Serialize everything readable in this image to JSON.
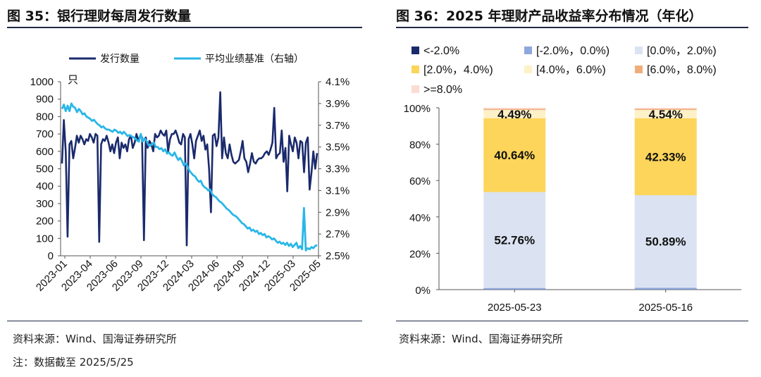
{
  "left_panel": {
    "figure_title": "图 35：银行理财每周发行数量",
    "source": "资料来源：Wind、国海证券研究所",
    "note": "注：数据截至 2025/5/25"
  },
  "right_panel": {
    "figure_title": "图 36：2025 年理财产品收益率分布情况（年化）",
    "source": "资料来源：Wind、国海证券研究所"
  },
  "chart_data": [
    {
      "type": "line",
      "legend_position": "top",
      "yunit": "只",
      "ylim": [
        0,
        1000
      ],
      "yticks": [
        "0",
        "100",
        "200",
        "300",
        "400",
        "500",
        "600",
        "700",
        "800",
        "900",
        "1000"
      ],
      "y2lim": [
        2.5,
        4.1
      ],
      "y2ticks": [
        "2.5%",
        "2.7%",
        "2.9%",
        "3.1%",
        "3.3%",
        "3.5%",
        "3.7%",
        "3.9%",
        "4.1%"
      ],
      "xticks": [
        "2023-01",
        "2023-04",
        "2023-06",
        "2023-09",
        "2023-12",
        "2024-03",
        "2024-06",
        "2024-09",
        "2024-12",
        "2025-03",
        "2025-05"
      ],
      "series": [
        {
          "name": "发行数量",
          "axis": "left",
          "color": "#1a2a6c",
          "values": [
            530,
            780,
            600,
            110,
            640,
            660,
            560,
            620,
            690,
            650,
            690,
            670,
            640,
            670,
            660,
            700,
            680,
            650,
            700,
            690,
            80,
            640,
            670,
            660,
            690,
            650,
            600,
            640,
            590,
            650,
            680,
            560,
            650,
            620,
            640,
            600,
            670,
            690,
            620,
            650,
            700,
            660,
            690,
            680,
            90,
            680,
            620,
            660,
            640,
            600,
            700,
            680,
            690,
            720,
            700,
            690,
            720,
            600,
            670,
            700,
            700,
            720,
            690,
            650,
            640,
            700,
            680,
            60,
            670,
            700,
            640,
            560,
            660,
            690,
            720,
            660,
            690,
            610,
            640,
            500,
            250,
            690,
            700,
            630,
            680,
            940,
            560,
            680,
            590,
            560,
            640,
            580,
            540,
            530,
            540,
            550,
            600,
            660,
            560,
            540,
            480,
            530,
            590,
            540,
            530,
            550,
            560,
            560,
            570,
            590,
            600,
            580,
            610,
            650,
            850,
            560,
            580,
            590,
            720,
            540,
            620,
            370,
            690,
            640,
            600,
            680,
            650,
            560,
            660,
            650,
            480,
            650,
            680,
            380,
            480,
            600,
            500,
            590
          ],
          "x_start": "2023-01-01",
          "x_end": "2025-05-25"
        },
        {
          "name": "平均业绩基准（右轴）",
          "axis": "right",
          "color": "#29b6e8",
          "values": [
            3.85,
            3.89,
            3.83,
            3.88,
            3.83,
            3.9,
            3.87,
            3.86,
            3.82,
            3.85,
            3.83,
            3.8,
            3.81,
            3.78,
            3.77,
            3.76,
            3.74,
            3.75,
            3.73,
            3.71,
            3.7,
            3.68,
            3.69,
            3.67,
            3.66,
            3.66,
            3.65,
            3.64,
            3.66,
            3.65,
            3.63,
            3.64,
            3.62,
            3.64,
            3.62,
            3.6,
            3.61,
            3.6,
            3.59,
            3.58,
            3.56,
            3.55,
            3.62,
            3.55,
            3.58,
            3.56,
            3.52,
            3.51,
            3.53,
            3.54,
            3.5,
            3.5,
            3.48,
            3.49,
            3.46,
            3.48,
            3.44,
            3.45,
            3.43,
            3.42,
            3.45,
            3.41,
            3.38,
            3.4,
            3.37,
            3.33,
            3.35,
            3.32,
            3.28,
            3.26,
            3.24,
            3.23,
            3.2,
            3.18,
            3.19,
            3.15,
            3.13,
            3.12,
            3.1,
            3.11,
            3.07,
            3.05,
            3.04,
            3.02,
            3,
            2.99,
            2.97,
            2.95,
            2.93,
            2.92,
            2.9,
            2.88,
            2.87,
            2.86,
            2.84,
            2.82,
            2.8,
            2.79,
            2.77,
            2.75,
            2.76,
            2.73,
            2.74,
            2.72,
            2.73,
            2.7,
            2.71,
            2.69,
            2.7,
            2.67,
            2.68,
            2.67,
            2.65,
            2.66,
            2.64,
            2.62,
            2.63,
            2.61,
            2.62,
            2.6,
            2.62,
            2.59,
            2.61,
            2.58,
            2.6,
            2.62,
            2.57,
            2.59,
            2.56,
            2.94,
            2.55,
            2.57,
            2.56,
            2.58,
            2.57,
            2.59,
            2.6
          ],
          "x_start": "2023-01-01",
          "x_end": "2025-05-25"
        }
      ]
    },
    {
      "type": "bar",
      "stacked": true,
      "legend_position": "top",
      "categories": [
        "2025-05-23",
        "2025-05-16"
      ],
      "ylim": [
        0,
        100
      ],
      "yticks": [
        "0%",
        "20%",
        "40%",
        "60%",
        "80%",
        "100%"
      ],
      "series": [
        {
          "name": "<-2.0%",
          "color": "#1a2a6c",
          "values": [
            0.05,
            0.05
          ]
        },
        {
          "name": "[-2.0%，0.0%)",
          "color": "#8fa8dc",
          "values": [
            0.85,
            1.0
          ]
        },
        {
          "name": "[0.0%，2.0%)",
          "color": "#dbe3f2",
          "values": [
            52.76,
            50.89
          ],
          "labels": [
            "52.76%",
            "50.89%"
          ]
        },
        {
          "name": "[2.0%，4.0%)",
          "color": "#fcd55a",
          "values": [
            40.64,
            42.33
          ],
          "labels": [
            "40.64%",
            "42.33%"
          ]
        },
        {
          "name": "[4.0%，6.0%)",
          "color": "#fdf1c7",
          "values": [
            4.49,
            4.54
          ],
          "labels": [
            "4.49%",
            "4.54%"
          ]
        },
        {
          "name": "[6.0%，8.0%)",
          "color": "#f0ad7a",
          "values": [
            0.6,
            0.6
          ]
        },
        {
          "name": ">=8.0%",
          "color": "#fbdcd2",
          "values": [
            0.61,
            0.59
          ]
        }
      ]
    }
  ]
}
